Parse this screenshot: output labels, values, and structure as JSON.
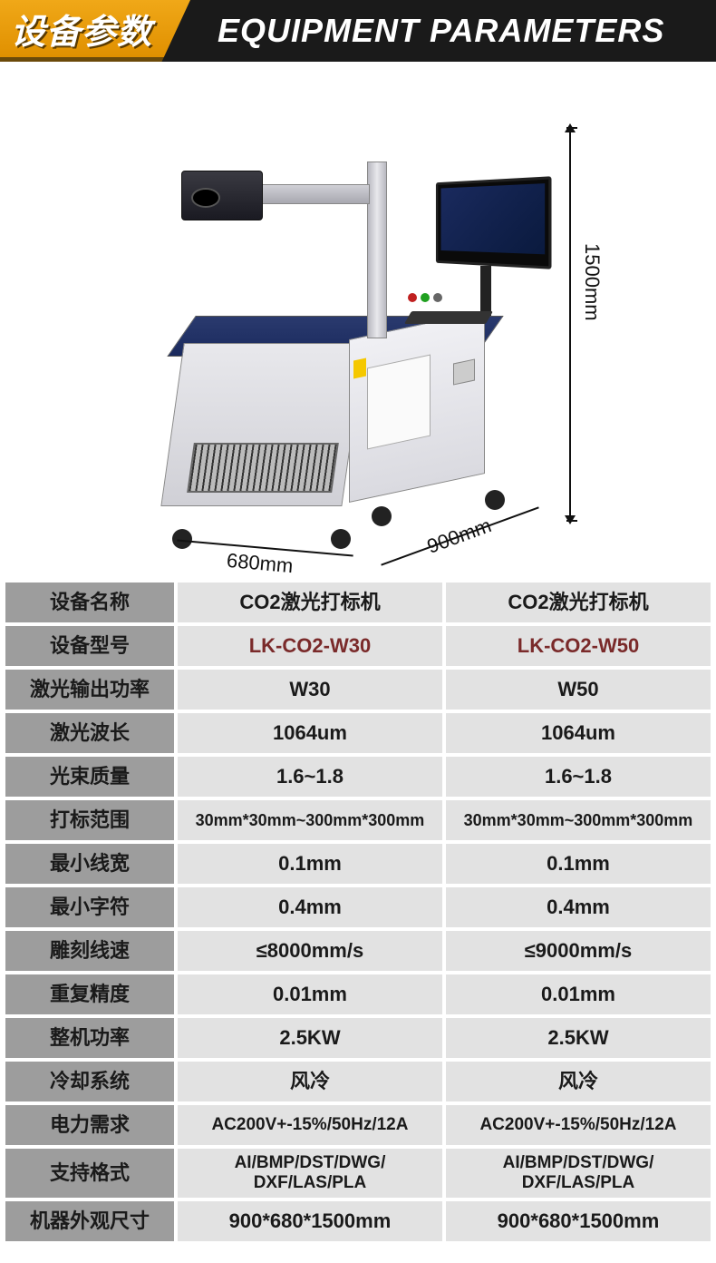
{
  "header": {
    "badge": "设备参数",
    "title": "EQUIPMENT PARAMETERS"
  },
  "dimensions": {
    "height": "1500mm",
    "width": "680mm",
    "depth": "900mm"
  },
  "colors": {
    "header_bg": "#1a1a1a",
    "badge_gradient_top": "#f0a818",
    "badge_gradient_bottom": "#e09000",
    "label_bg": "#9d9d9d",
    "value_bg": "#e2e2e2",
    "model_text": "#7a2a2a",
    "cabinet_accent": "#2a3a6e"
  },
  "table": {
    "rows": [
      {
        "label": "设备名称",
        "v1": "CO2激光打标机",
        "v2": "CO2激光打标机",
        "cls": ""
      },
      {
        "label": "设备型号",
        "v1": "LK-CO2-W30",
        "v2": "LK-CO2-W50",
        "cls": "model"
      },
      {
        "label": "激光输出功率",
        "v1": "W30",
        "v2": "W50",
        "cls": ""
      },
      {
        "label": "激光波长",
        "v1": "1064um",
        "v2": "1064um",
        "cls": ""
      },
      {
        "label": "光束质量",
        "v1": "1.6~1.8",
        "v2": "1.6~1.8",
        "cls": ""
      },
      {
        "label": "打标范围",
        "v1": "30mm*30mm~300mm*300mm",
        "v2": "30mm*30mm~300mm*300mm",
        "cls": "small"
      },
      {
        "label": "最小线宽",
        "v1": "0.1mm",
        "v2": "0.1mm",
        "cls": ""
      },
      {
        "label": "最小字符",
        "v1": "0.4mm",
        "v2": "0.4mm",
        "cls": ""
      },
      {
        "label": "雕刻线速",
        "v1": "≤8000mm/s",
        "v2": "≤9000mm/s",
        "cls": ""
      },
      {
        "label": "重复精度",
        "v1": "0.01mm",
        "v2": "0.01mm",
        "cls": ""
      },
      {
        "label": "整机功率",
        "v1": "2.5KW",
        "v2": "2.5KW",
        "cls": ""
      },
      {
        "label": "冷却系统",
        "v1": "风冷",
        "v2": "风冷",
        "cls": ""
      },
      {
        "label": "电力需求",
        "v1": "AC200V+-15%/50Hz/12A",
        "v2": "AC200V+-15%/50Hz/12A",
        "cls": "xsmall"
      },
      {
        "label": "支持格式",
        "v1": "AI/BMP/DST/DWG/\nDXF/LAS/PLA",
        "v2": "AI/BMP/DST/DWG/\nDXF/LAS/PLA",
        "cls": "xsmall",
        "tall": true
      },
      {
        "label": "机器外观尺寸",
        "v1": "900*680*1500mm",
        "v2": "900*680*1500mm",
        "cls": ""
      }
    ]
  }
}
